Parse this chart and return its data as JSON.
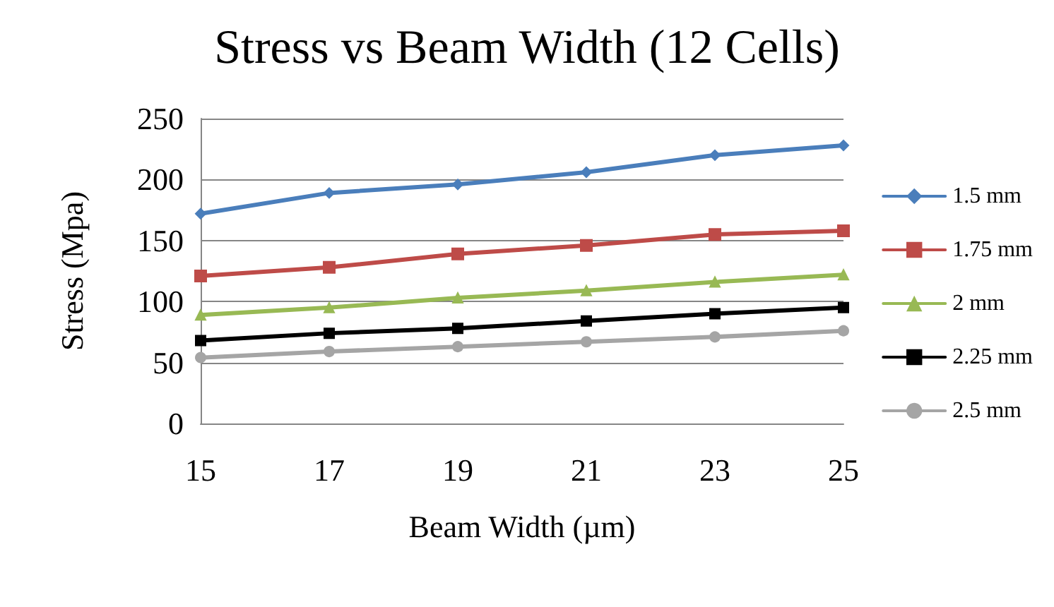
{
  "chart_data": {
    "type": "line",
    "title": "Stress vs Beam Width (12 Cells)",
    "xlabel": "Beam Width (µm)",
    "ylabel": "Stress (Mpa)",
    "categories": [
      "15",
      "17",
      "19",
      "21",
      "23",
      "25"
    ],
    "series": [
      {
        "name": "1.5 mm",
        "color": "#4a7ebb",
        "marker": "diamond",
        "values": [
          172,
          189,
          196,
          206,
          220,
          228
        ]
      },
      {
        "name": "1.75 mm",
        "color": "#be4b48",
        "marker": "square",
        "values": [
          121,
          128,
          139,
          146,
          155,
          158
        ]
      },
      {
        "name": "2 mm",
        "color": "#98b954",
        "marker": "triangle",
        "values": [
          89,
          95,
          103,
          109,
          116,
          122
        ]
      },
      {
        "name": "2.25 mm",
        "color": "#000000",
        "marker": "cross",
        "values": [
          68,
          74,
          78,
          84,
          90,
          95
        ]
      },
      {
        "name": "2.5 mm",
        "color": "#a5a5a5",
        "marker": "circle",
        "values": [
          54,
          59,
          63,
          67,
          71,
          76
        ]
      }
    ],
    "ylim": [
      0,
      250
    ],
    "yticks": [
      0,
      50,
      100,
      150,
      200,
      250
    ],
    "grid": "y",
    "legend": "right",
    "line_style": "solid"
  }
}
